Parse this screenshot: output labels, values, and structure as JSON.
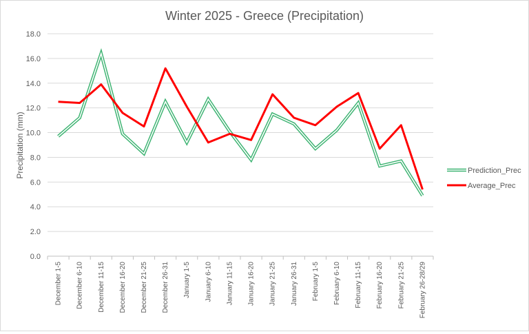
{
  "chart_data": {
    "type": "line",
    "title": "Winter 2025 - Greece (Precipitation)",
    "xlabel": "",
    "ylabel": "Precipitation (mm)",
    "ylim": [
      0,
      18
    ],
    "yticks": [
      "0.0",
      "2.0",
      "4.0",
      "6.0",
      "8.0",
      "10.0",
      "12.0",
      "14.0",
      "16.0",
      "18.0"
    ],
    "grid": true,
    "legend_position": "right",
    "categories": [
      "December 1-5",
      "December 6-10",
      "December 11-15",
      "December 16-20",
      "December 21-25",
      "December 26-31",
      "January 1-5",
      "January 6-10",
      "January 11-15",
      "January 16-20",
      "January 21-25",
      "January 26-31",
      "February 1-5",
      "February 6-10",
      "February 11-15",
      "February 16-20",
      "February 21-25",
      "February 26-28/29"
    ],
    "series": [
      {
        "name": "Prediction_Prec",
        "color": "#3cb371",
        "style": "double-line",
        "values": [
          9.7,
          11.2,
          16.4,
          9.9,
          8.3,
          12.5,
          9.2,
          12.7,
          10.1,
          7.8,
          11.5,
          10.7,
          8.7,
          10.2,
          12.4,
          7.3,
          7.7,
          4.9
        ]
      },
      {
        "name": "Average_Prec",
        "color": "#ff0000",
        "style": "solid",
        "values": [
          12.5,
          12.4,
          13.9,
          11.6,
          10.5,
          15.2,
          12.1,
          9.2,
          9.9,
          9.4,
          13.1,
          11.2,
          10.6,
          12.1,
          13.2,
          8.7,
          10.6,
          5.4
        ]
      }
    ]
  }
}
